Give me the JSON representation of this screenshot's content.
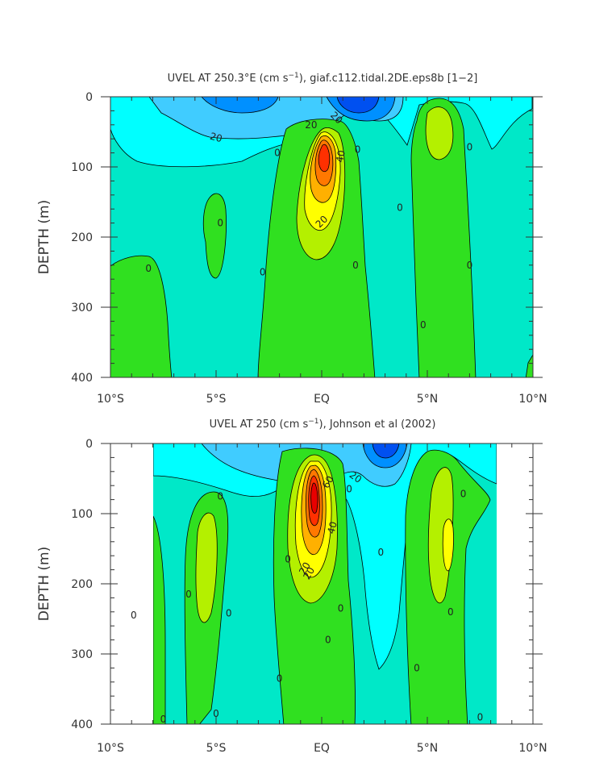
{
  "chart_data": [
    {
      "type": "heatmap",
      "title_prefix": "UVEL AT 250.3°E (cm s",
      "title_exp": "−1",
      "title_suffix": "), giaf.c112.tidal.2DE.eps8b [1−2]",
      "ylabel": "DEPTH (m)",
      "x_ticks": [
        "10°S",
        "5°S",
        "EQ",
        "5°N",
        "10°N"
      ],
      "y_ticks": [
        "0",
        "100",
        "200",
        "300",
        "400"
      ],
      "xlim": [
        -10,
        10
      ],
      "ylim": [
        400,
        0
      ],
      "contour_labels": [
        {
          "text": "20",
          "x": -5.0,
          "depth": 58,
          "rot": 15
        },
        {
          "text": "20",
          "x": 0.7,
          "depth": 30,
          "rot": 45
        },
        {
          "text": "20",
          "x": -0.5,
          "depth": 40,
          "rot": 0
        },
        {
          "text": "40",
          "x": 0.9,
          "depth": 85,
          "rot": -80
        },
        {
          "text": "20",
          "x": 0.0,
          "depth": 178,
          "rot": -45
        },
        {
          "text": "0",
          "x": -2.1,
          "depth": 80,
          "rot": 0
        },
        {
          "text": "0",
          "x": 1.7,
          "depth": 75,
          "rot": 0
        },
        {
          "text": "0",
          "x": -4.8,
          "depth": 180,
          "rot": 0
        },
        {
          "text": "0",
          "x": -8.2,
          "depth": 245,
          "rot": 0
        },
        {
          "text": "0",
          "x": -2.8,
          "depth": 250,
          "rot": 0
        },
        {
          "text": "0",
          "x": 1.6,
          "depth": 240,
          "rot": 0
        },
        {
          "text": "0",
          "x": 3.7,
          "depth": 158,
          "rot": 0
        },
        {
          "text": "0",
          "x": 4.8,
          "depth": 325,
          "rot": 0
        },
        {
          "text": "0",
          "x": 7.0,
          "depth": 72,
          "rot": 0
        },
        {
          "text": "0",
          "x": 7.0,
          "depth": 240,
          "rot": 0
        }
      ]
    },
    {
      "type": "heatmap",
      "title_prefix": "UVEL AT 250 (cm s",
      "title_exp": "−1",
      "title_suffix": "), Johnson et al (2002)",
      "ylabel": "DEPTH (m)",
      "x_ticks": [
        "10°S",
        "5°S",
        "EQ",
        "5°N",
        "10°N"
      ],
      "y_ticks": [
        "0",
        "100",
        "200",
        "300",
        "400"
      ],
      "xlim": [
        -10,
        10
      ],
      "ylim": [
        400,
        0
      ],
      "contour_labels": [
        {
          "text": "20",
          "x": 1.6,
          "depth": 48,
          "rot": 35
        },
        {
          "text": "60",
          "x": 0.3,
          "depth": 55,
          "rot": -60
        },
        {
          "text": "40",
          "x": 0.5,
          "depth": 120,
          "rot": -75
        },
        {
          "text": "20",
          "x": -0.8,
          "depth": 178,
          "rot": -60
        },
        {
          "text": "20",
          "x": -0.6,
          "depth": 185,
          "rot": -60
        },
        {
          "text": "0",
          "x": -4.8,
          "depth": 75,
          "rot": 0
        },
        {
          "text": "0",
          "x": 1.3,
          "depth": 65,
          "rot": 0
        },
        {
          "text": "0",
          "x": -1.6,
          "depth": 165,
          "rot": 0
        },
        {
          "text": "0",
          "x": 2.8,
          "depth": 155,
          "rot": 0
        },
        {
          "text": "0",
          "x": 6.7,
          "depth": 72,
          "rot": 0
        },
        {
          "text": "0",
          "x": -6.3,
          "depth": 215,
          "rot": 0
        },
        {
          "text": "0",
          "x": 0.9,
          "depth": 235,
          "rot": 0
        },
        {
          "text": "0",
          "x": -4.4,
          "depth": 242,
          "rot": 0
        },
        {
          "text": "0",
          "x": -8.9,
          "depth": 245,
          "rot": 0
        },
        {
          "text": "0",
          "x": 6.1,
          "depth": 240,
          "rot": 0
        },
        {
          "text": "0",
          "x": 0.3,
          "depth": 280,
          "rot": 0
        },
        {
          "text": "0",
          "x": -2.0,
          "depth": 335,
          "rot": 0
        },
        {
          "text": "0",
          "x": 4.5,
          "depth": 320,
          "rot": 0
        },
        {
          "text": "0",
          "x": -5.0,
          "depth": 385,
          "rot": 0
        },
        {
          "text": "0",
          "x": -7.5,
          "depth": 393,
          "rot": 0
        },
        {
          "text": "0",
          "x": 7.5,
          "depth": 390,
          "rot": 0
        }
      ]
    }
  ],
  "colors": {
    "background_fill": "#00e8c8",
    "level_neg10": "#00ffff",
    "level_neg20": "#40ccff",
    "level_neg30": "#0090ff",
    "level_neg40": "#0050f0",
    "level_0_10": "#30e020",
    "level_10": "#b4f000",
    "level_20": "#ffff00",
    "level_30": "#ffb000",
    "level_40": "#ff7800",
    "level_50": "#ff3000",
    "level_60": "#e80000",
    "contour_line": "#000000"
  }
}
